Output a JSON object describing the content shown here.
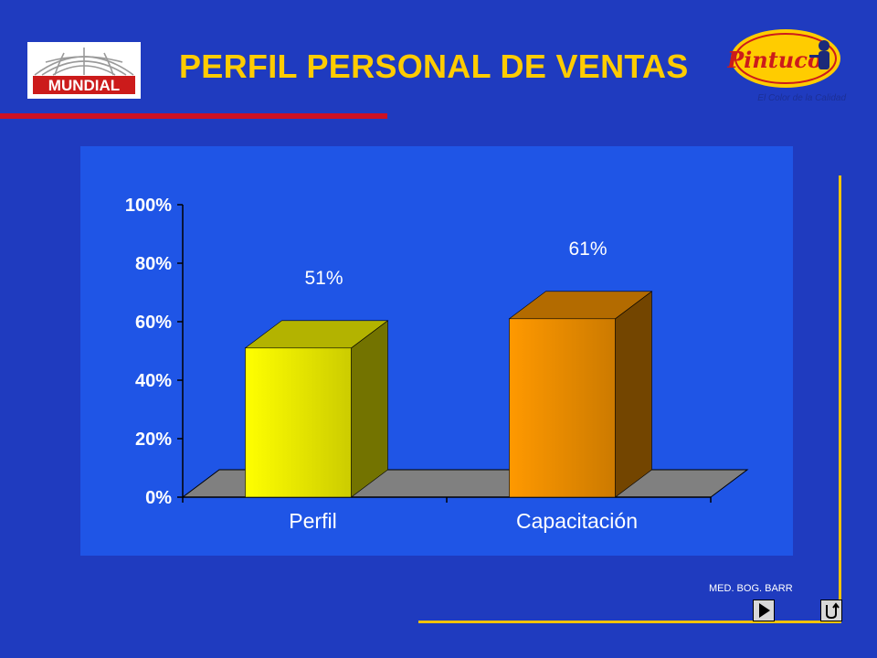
{
  "slide": {
    "title": "PERFIL PERSONAL DE VENTAS",
    "footer": "MED. BOG. BARR"
  },
  "logos": {
    "left": {
      "text": "MUNDIAL",
      "icon": "globe-icon"
    },
    "right": {
      "text": "Pintuco",
      "tagline": "El Color de la Calidad",
      "icon": "painter-mascot-icon"
    }
  },
  "nav": {
    "next": {
      "icon": "play-next-icon"
    },
    "return": {
      "icon": "return-arrow-icon"
    }
  },
  "colors": {
    "background": "#1f3bbf",
    "plot_area": "#1f55e6",
    "title": "#ffcc00",
    "rule_red": "#cc1122",
    "rule_yellow": "#f2c200",
    "floor": "#808080"
  },
  "chart_data": {
    "type": "bar",
    "style": "3d",
    "categories": [
      "Perfil",
      "Capacitación"
    ],
    "values": [
      51,
      61
    ],
    "value_labels": [
      "51%",
      "61%"
    ],
    "bar_colors": [
      "#ffff00",
      "#ff9900"
    ],
    "ylim": [
      0,
      100
    ],
    "yticks": [
      0,
      20,
      40,
      60,
      80,
      100
    ],
    "ytick_labels": [
      "0%",
      "20%",
      "40%",
      "60%",
      "80%",
      "100%"
    ],
    "grid": false,
    "legend": false
  }
}
